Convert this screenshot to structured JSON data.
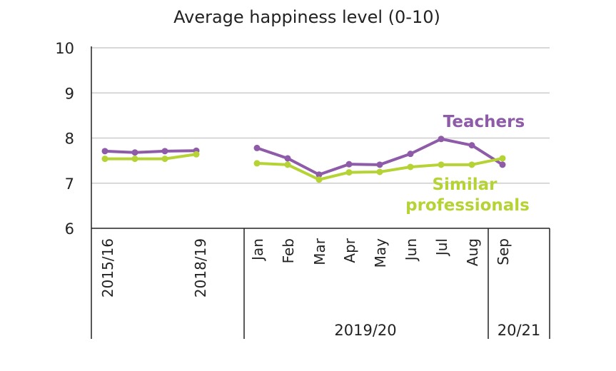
{
  "chart_data": {
    "type": "line",
    "title": "Average happiness level (0-10)",
    "ylim": [
      6,
      10
    ],
    "yticks": [
      6,
      7,
      8,
      9,
      10
    ],
    "grid": true,
    "segments": [
      {
        "x": [
          "2015/16",
          "",
          "",
          "2018/19"
        ],
        "points": 4
      },
      {
        "x": [
          "Jan",
          "Feb",
          "Mar",
          "Apr",
          "May",
          "Jun",
          "Jul",
          "Aug",
          "Sep"
        ]
      }
    ],
    "group_labels": [
      "2019/20",
      "20/21"
    ],
    "series": [
      {
        "name": "Teachers",
        "color": "#8e5ba8",
        "annual": [
          7.71,
          7.68,
          7.71,
          7.72
        ],
        "monthly": [
          7.78,
          7.55,
          7.19,
          7.42,
          7.41,
          7.65,
          7.98,
          7.84,
          7.41
        ]
      },
      {
        "name": "Similar professionals",
        "color": "#b5d334",
        "annual": [
          7.54,
          7.54,
          7.54,
          7.64
        ],
        "monthly": [
          7.44,
          7.41,
          7.08,
          7.24,
          7.25,
          7.36,
          7.41,
          7.41,
          7.55
        ]
      }
    ],
    "legend_labels": {
      "teachers": "Teachers",
      "similar_line1": "Similar",
      "similar_line2": "professionals"
    }
  }
}
